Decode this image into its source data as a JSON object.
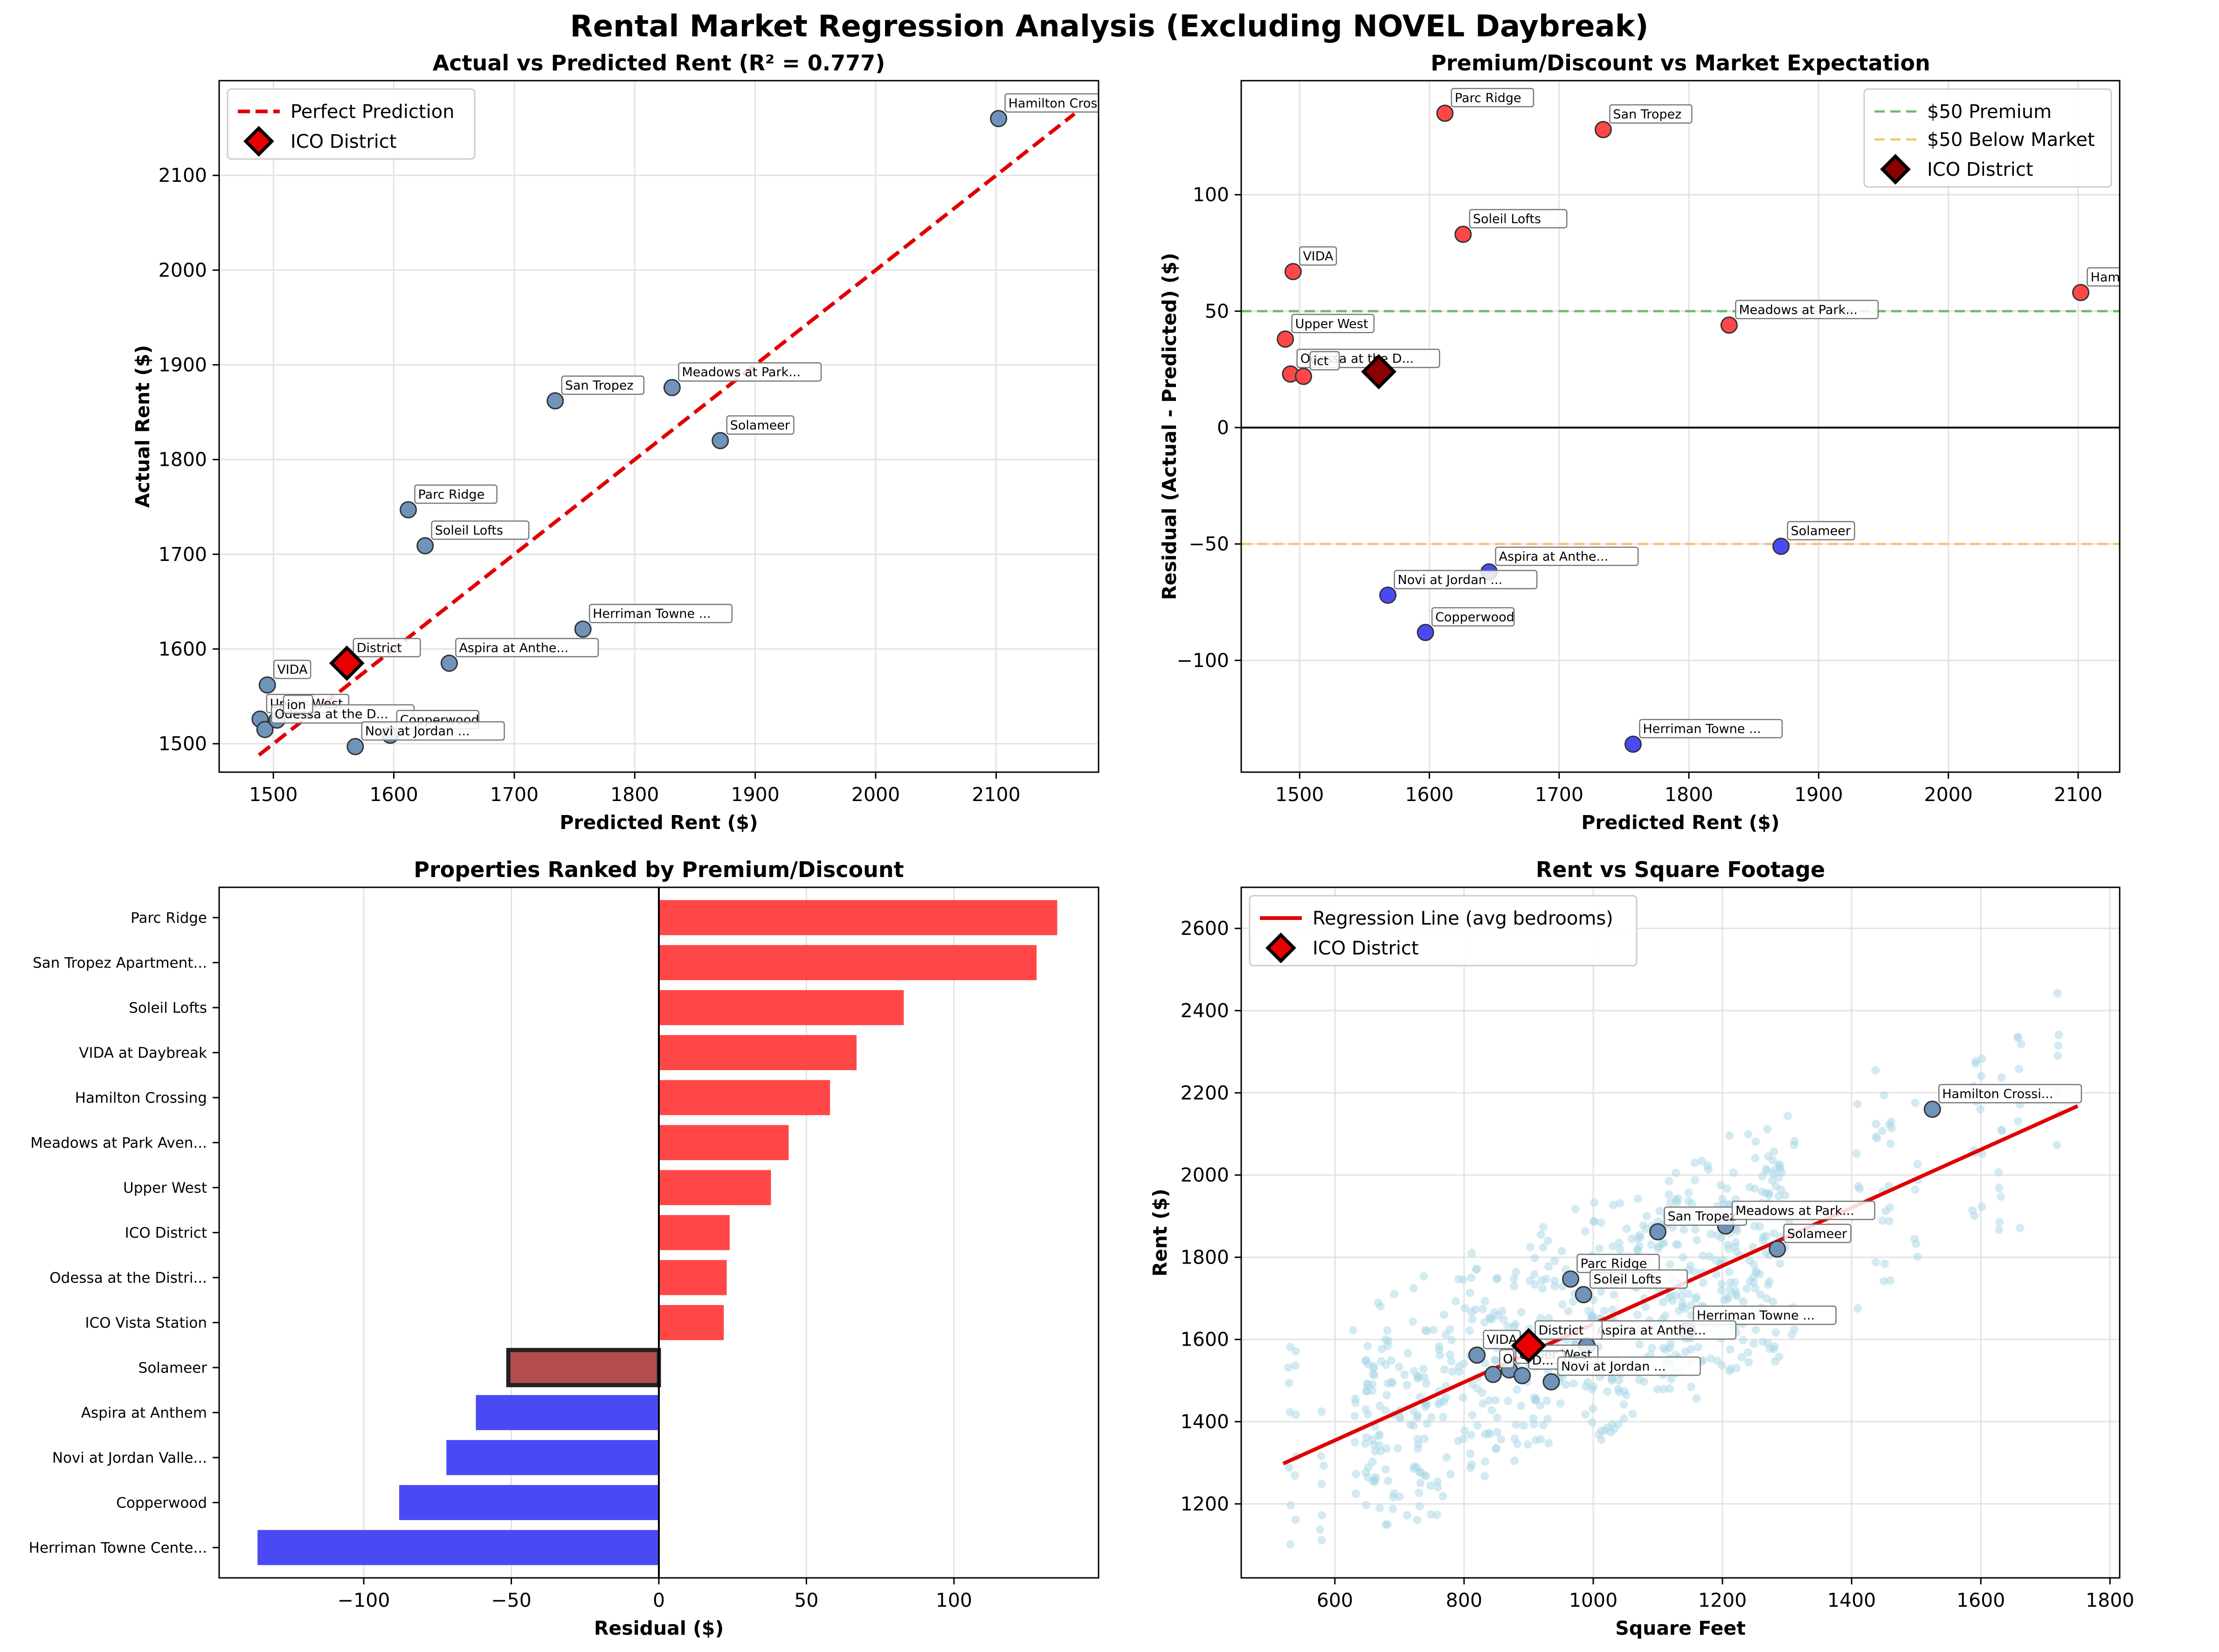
{
  "figure": {
    "title": "Rental Market Regression Analysis (Excluding NOVEL Daybreak)"
  },
  "colors": {
    "point": "#6f93b9",
    "premium": "#ff4747",
    "discount": "#4a4af5",
    "highlight": "#e80000",
    "highlight_dark": "#8b0000",
    "selected_bar": "#b34d4d",
    "scatter_bg": "#a8d5e5",
    "ref_line": "#e00000",
    "green_line": "#6dbd6d",
    "orange_line": "#f7c47a"
  },
  "chart_data": [
    {
      "id": "p1",
      "type": "scatter",
      "title": "Actual vs Predicted Rent (R² = 0.777)",
      "xlabel": "Predicted Rent ($)",
      "ylabel": "Actual Rent ($)",
      "xlim": [
        1455,
        2185
      ],
      "ylim": [
        1470,
        2200
      ],
      "xticks": [
        1500,
        1600,
        1700,
        1800,
        1900,
        2000,
        2100
      ],
      "yticks": [
        1500,
        1600,
        1700,
        1800,
        1900,
        2000,
        2100
      ],
      "grid": true,
      "legend_position": "top-left",
      "legend": [
        {
          "label": "Perfect Prediction",
          "marker": "dashed-line"
        },
        {
          "label": "ICO District",
          "marker": "diamond"
        }
      ],
      "reference_line": {
        "x": [
          1488,
          2165
        ],
        "y": [
          1488,
          2165
        ]
      },
      "points": [
        {
          "label": "Hamilton Crossi...",
          "x": 2102,
          "y": 2160
        },
        {
          "label": "San Tropez",
          "x": 1734,
          "y": 1862
        },
        {
          "label": "Meadows at Park...",
          "x": 1831,
          "y": 1876
        },
        {
          "label": "Solameer",
          "x": 1871,
          "y": 1820
        },
        {
          "label": "Parc Ridge",
          "x": 1612,
          "y": 1747
        },
        {
          "label": "Soleil Lofts",
          "x": 1626,
          "y": 1709
        },
        {
          "label": "Herriman Towne ...",
          "x": 1757,
          "y": 1621
        },
        {
          "label": "Aspira at Anthe...",
          "x": 1646,
          "y": 1585
        },
        {
          "label": "VIDA",
          "x": 1495,
          "y": 1562
        },
        {
          "label": "Upper West",
          "x": 1489,
          "y": 1526
        },
        {
          "label": "Odessa at the D...",
          "x": 1493,
          "y": 1515
        },
        {
          "label": "ion",
          "x": 1503,
          "y": 1525
        },
        {
          "label": "Copperwood",
          "x": 1597,
          "y": 1509
        },
        {
          "label": "Novi at Jordan ...",
          "x": 1568,
          "y": 1497
        }
      ],
      "highlight": {
        "label": "District",
        "x": 1561,
        "y": 1585
      }
    },
    {
      "id": "p2",
      "type": "scatter",
      "title": "Premium/Discount vs Market Expectation",
      "xlabel": "Predicted Rent ($)",
      "ylabel": "Residual (Actual - Predicted) ($)",
      "xlim": [
        1455,
        2132
      ],
      "ylim": [
        -148,
        149
      ],
      "xticks": [
        1500,
        1600,
        1700,
        1800,
        1900,
        2000,
        2100
      ],
      "yticks": [
        -100,
        -50,
        0,
        50,
        100
      ],
      "grid": true,
      "legend_position": "top-right",
      "legend": [
        {
          "label": "$50 Premium",
          "marker": "green-dashed"
        },
        {
          "label": "$50 Below Market",
          "marker": "orange-dashed"
        },
        {
          "label": "ICO District",
          "marker": "diamond-dark"
        }
      ],
      "hlines": [
        {
          "y": 50,
          "style": "green-dashed"
        },
        {
          "y": -50,
          "style": "orange-dashed"
        },
        {
          "y": 0,
          "style": "black-solid"
        }
      ],
      "points": [
        {
          "label": "Parc Ridge",
          "x": 1612,
          "y": 135,
          "group": "premium"
        },
        {
          "label": "San Tropez",
          "x": 1734,
          "y": 128,
          "group": "premium"
        },
        {
          "label": "Soleil Lofts",
          "x": 1626,
          "y": 83,
          "group": "premium"
        },
        {
          "label": "VIDA",
          "x": 1495,
          "y": 67,
          "group": "premium"
        },
        {
          "label": "Hamilton Crossi...",
          "x": 2102,
          "y": 58,
          "group": "premium"
        },
        {
          "label": "Meadows at Park...",
          "x": 1831,
          "y": 44,
          "group": "premium"
        },
        {
          "label": "Upper West",
          "x": 1489,
          "y": 38,
          "group": "premium"
        },
        {
          "label": "Odessa at the D...",
          "x": 1493,
          "y": 23,
          "group": "premium"
        },
        {
          "label": "ict",
          "x": 1503,
          "y": 22,
          "group": "premium"
        },
        {
          "label": "Solameer",
          "x": 1871,
          "y": -51,
          "group": "discount"
        },
        {
          "label": "Aspira at Anthe...",
          "x": 1646,
          "y": -62,
          "group": "discount"
        },
        {
          "label": "Novi at Jordan ...",
          "x": 1568,
          "y": -72,
          "group": "discount"
        },
        {
          "label": "Copperwood",
          "x": 1597,
          "y": -88,
          "group": "discount"
        },
        {
          "label": "Herriman Towne ...",
          "x": 1757,
          "y": -136,
          "group": "discount"
        }
      ],
      "highlight": {
        "label": "",
        "x": 1561,
        "y": 24
      }
    },
    {
      "id": "p3",
      "type": "bar",
      "orientation": "horizontal",
      "title": "Properties Ranked by Premium/Discount",
      "xlabel": "Residual ($)",
      "ylabel": "",
      "xlim": [
        -149,
        149
      ],
      "xticks": [
        -100,
        -50,
        0,
        50,
        100
      ],
      "grid": true,
      "categories": [
        "Parc Ridge",
        "San Tropez Apartment...",
        "Soleil Lofts",
        "VIDA at Daybreak",
        "Hamilton Crossing",
        "Meadows at Park Aven...",
        "Upper West",
        "ICO District",
        "Odessa at the Distri...",
        "ICO Vista Station",
        "Solameer",
        "Aspira at Anthem",
        "Novi at Jordan Valle...",
        "Copperwood",
        "Herriman Towne Cente..."
      ],
      "values": [
        135,
        128,
        83,
        67,
        58,
        44,
        38,
        24,
        23,
        22,
        -51,
        -62,
        -72,
        -88,
        -136
      ],
      "selected_index": 10
    },
    {
      "id": "p4",
      "type": "scatter",
      "title": "Rent vs Square Footage",
      "xlabel": "Square Feet",
      "ylabel": "Rent ($)",
      "xlim": [
        455,
        1815
      ],
      "ylim": [
        1020,
        2700
      ],
      "xticks": [
        600,
        800,
        1000,
        1200,
        1400,
        1600,
        1800
      ],
      "yticks": [
        1200,
        1400,
        1600,
        1800,
        2000,
        2200,
        2400,
        2600
      ],
      "grid": true,
      "legend_position": "top-left",
      "legend": [
        {
          "label": "Regression Line (avg bedrooms)",
          "marker": "solid-line"
        },
        {
          "label": "ICO District",
          "marker": "diamond"
        }
      ],
      "regression_line": {
        "x": [
          520,
          1750
        ],
        "y": [
          1298,
          2168
        ]
      },
      "background_points_description": "individual unit listings",
      "points": [
        {
          "label": "Hamilton Crossi...",
          "x": 1525,
          "y": 2160
        },
        {
          "label": "San Tropez",
          "x": 1100,
          "y": 1862
        },
        {
          "label": "Meadows at Park...",
          "x": 1205,
          "y": 1876
        },
        {
          "label": "Solameer",
          "x": 1285,
          "y": 1820
        },
        {
          "label": "Parc Ridge",
          "x": 965,
          "y": 1747
        },
        {
          "label": "Soleil Lofts",
          "x": 985,
          "y": 1709
        },
        {
          "label": "Herriman Towne ...",
          "x": 1145,
          "y": 1621
        },
        {
          "label": "Aspira at Anthe...",
          "x": 990,
          "y": 1585
        },
        {
          "label": "VIDA",
          "x": 820,
          "y": 1562
        },
        {
          "label": "Upper West",
          "x": 870,
          "y": 1526
        },
        {
          "label": "O",
          "x": 845,
          "y": 1515
        },
        {
          "label": "D...",
          "x": 890,
          "y": 1512
        },
        {
          "label": "Novi at Jordan ...",
          "x": 935,
          "y": 1497
        }
      ],
      "highlight": {
        "label": "District",
        "x": 900,
        "y": 1585
      }
    }
  ]
}
